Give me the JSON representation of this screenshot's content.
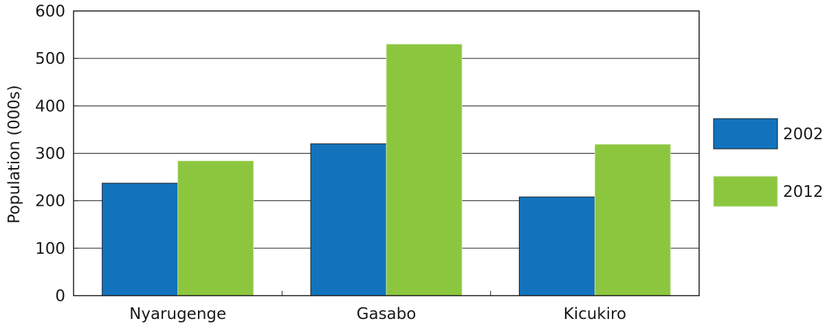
{
  "chart_data": {
    "type": "bar",
    "title": "",
    "xlabel": "",
    "ylabel": "Population (000s)",
    "categories": [
      "Nyarugenge",
      "Gasabo",
      "Kicukiro"
    ],
    "series": [
      {
        "name": "2002",
        "color": "#1273bc",
        "values": [
          237,
          320,
          208
        ]
      },
      {
        "name": "2012",
        "color": "#8cc63f",
        "values": [
          284,
          530,
          319
        ]
      }
    ],
    "ylim": [
      0,
      600
    ],
    "yticks": [
      "0",
      "100",
      "200",
      "300",
      "400",
      "500",
      "600"
    ],
    "grid": true,
    "legend_position": "right"
  }
}
